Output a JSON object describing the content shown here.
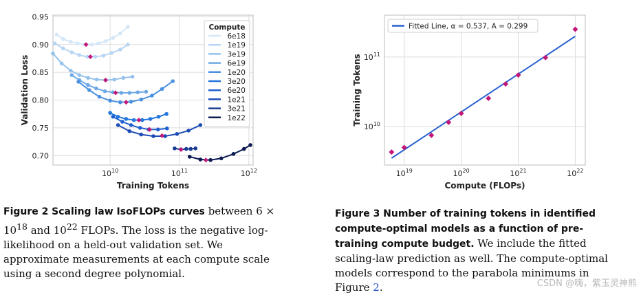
{
  "figure_left": {
    "caption_label": "Figure 2",
    "caption_title": "Scaling law IsoFLOPs curves",
    "caption_text_1": "between 6 × 10",
    "caption_sup_1": "18",
    "caption_text_2": "and 10",
    "caption_sup_2": "22",
    "caption_text_3": "FLOPs. The loss is the negative log-likelihood on a held-out validation set. We approximate measurements at each compute scale using a second degree polynomial."
  },
  "figure_right": {
    "caption_label": "Figure 3",
    "caption_title": "Number of training tokens in identified compute-optimal models as a function of pre-training compute budget.",
    "caption_text_1": "We include the fitted scaling-law prediction as well. The compute-optimal models correspond to the parabola minimums in Figure",
    "caption_ref": "2",
    "caption_end": "."
  },
  "watermark": "CSDN @嗨，紫玉灵神熊",
  "chart_data": [
    {
      "type": "line",
      "id": "isoflops",
      "xlabel": "Training Tokens",
      "ylabel": "Validation Loss",
      "xscale": "log",
      "xlim": [
        1500000000.0,
        1150000000000.0
      ],
      "ylim": [
        0.683,
        0.953
      ],
      "yticks": [
        0.7,
        0.75,
        0.8,
        0.85,
        0.9,
        0.95
      ],
      "ytick_labels": [
        "0.70",
        "0.75",
        "0.80",
        "0.85",
        "0.90",
        "0.95"
      ],
      "xticks": [
        {
          "value": 10000000000.0,
          "base": "10",
          "exp": "10"
        },
        {
          "value": 100000000000.0,
          "base": "10",
          "exp": "11"
        },
        {
          "value": 1000000000000.0,
          "base": "10",
          "exp": "12"
        }
      ],
      "legend": {
        "title": "Compute",
        "position": "top-right"
      },
      "minimum_marker_color": "#c2187a",
      "series": [
        {
          "name": "6e18",
          "color": "#d4e7f8",
          "x": [
            1700000000.0,
            2100000000.0,
            2700000000.0,
            3400000000.0,
            4300000000.0,
            5400000000.0,
            6800000000.0,
            8600000000.0,
            11000000000.0,
            14000000000.0,
            18000000000.0
          ],
          "y": [
            0.918,
            0.91,
            0.905,
            0.902,
            0.9,
            0.9,
            0.902,
            0.906,
            0.912,
            0.92,
            0.932
          ],
          "min": [
            4500000000.0,
            0.9
          ]
        },
        {
          "name": "1e19",
          "color": "#b7d6f3",
          "x": [
            1600000000.0,
            2100000000.0,
            2800000000.0,
            3600000000.0,
            4700000000.0,
            6100000000.0,
            8000000000.0,
            10500000000.0,
            14000000000.0,
            18000000000.0
          ],
          "y": [
            0.902,
            0.893,
            0.886,
            0.881,
            0.878,
            0.878,
            0.88,
            0.885,
            0.891,
            0.9
          ],
          "min": [
            5200000000.0,
            0.878
          ]
        },
        {
          "name": "3e19",
          "color": "#95c2ec",
          "x": [
            1500000000.0,
            2000000000.0,
            2700000000.0,
            3600000000.0,
            4800000000.0,
            6400000000.0,
            8600000000.0,
            11500000000.0,
            15500000000.0,
            21000000000.0
          ],
          "y": [
            0.884,
            0.866,
            0.853,
            0.845,
            0.84,
            0.837,
            0.836,
            0.837,
            0.84,
            0.842
          ],
          "min": [
            8600000000.0,
            0.836
          ]
        },
        {
          "name": "6e19",
          "color": "#6ea9e6",
          "x": [
            2800000000.0,
            3600000000.0,
            4800000000.0,
            6300000000.0,
            8400000000.0,
            11000000000.0,
            14500000000.0,
            19000000000.0,
            25000000000.0,
            33000000000.0
          ],
          "y": [
            0.845,
            0.836,
            0.827,
            0.821,
            0.816,
            0.814,
            0.813,
            0.813,
            0.814,
            0.815
          ],
          "min": [
            12000000000.0,
            0.813
          ]
        },
        {
          "name": "1e20",
          "color": "#4b91e0",
          "x": [
            3500000000.0,
            5000000000.0,
            7000000000.0,
            10000000000.0,
            14000000000.0,
            20000000000.0,
            28000000000.0,
            40000000000.0,
            56000000000.0,
            80000000000.0
          ],
          "y": [
            0.833,
            0.818,
            0.806,
            0.799,
            0.796,
            0.797,
            0.801,
            0.808,
            0.82,
            0.834
          ],
          "min": [
            17000000000.0,
            0.796
          ]
        },
        {
          "name": "3e20",
          "color": "#2376dd",
          "x": [
            10000000000.0,
            13000000000.0,
            17000000000.0,
            22000000000.0,
            29000000000.0,
            38000000000.0,
            50000000000.0,
            65000000000.0
          ],
          "y": [
            0.777,
            0.77,
            0.766,
            0.764,
            0.764,
            0.766,
            0.77,
            0.775
          ],
          "min": [
            26000000000.0,
            0.764
          ]
        },
        {
          "name": "6e20",
          "color": "#1f5fd0",
          "x": [
            11000000000.0,
            15000000000.0,
            20000000000.0,
            27000000000.0,
            36000000000.0,
            49000000000.0,
            66000000000.0
          ],
          "y": [
            0.77,
            0.761,
            0.755,
            0.75,
            0.747,
            0.747,
            0.749
          ],
          "min": [
            37000000000.0,
            0.747
          ]
        },
        {
          "name": "1e21",
          "color": "#1e4bb4",
          "x": [
            13000000000.0,
            19000000000.0,
            28000000000.0,
            42000000000.0,
            62000000000.0,
            92000000000.0,
            135000000000.0,
            200000000000.0
          ],
          "y": [
            0.755,
            0.744,
            0.738,
            0.735,
            0.735,
            0.739,
            0.745,
            0.755
          ],
          "min": [
            56000000000.0,
            0.736
          ]
        },
        {
          "name": "3e21",
          "color": "#183a92",
          "x": [
            85000000000.0,
            105000000000.0,
            125000000000.0,
            145000000000.0,
            170000000000.0
          ],
          "y": [
            0.713,
            0.711,
            0.712,
            0.712,
            0.713
          ],
          "min": [
            105000000000.0,
            0.711
          ]
        },
        {
          "name": "1e22",
          "color": "#0b1a52",
          "x": [
            140000000000.0,
            200000000000.0,
            280000000000.0,
            400000000000.0,
            600000000000.0,
            850000000000.0,
            1050000000000.0
          ],
          "y": [
            0.698,
            0.693,
            0.692,
            0.695,
            0.703,
            0.712,
            0.719
          ],
          "min": [
            240000000000.0,
            0.692
          ]
        }
      ]
    },
    {
      "type": "scatter",
      "id": "tokens-vs-compute",
      "xlabel": "Compute (FLOPs)",
      "ylabel": "Training Tokens",
      "xscale": "log",
      "yscale": "log",
      "xlim": [
        4.5e+18,
        1.5e+22
      ],
      "ylim": [
        2800000000.0,
        400000000000.0
      ],
      "xticks": [
        {
          "value": 1e+19,
          "base": "10",
          "exp": "19"
        },
        {
          "value": 1e+20,
          "base": "10",
          "exp": "20"
        },
        {
          "value": 1e+21,
          "base": "10",
          "exp": "21"
        },
        {
          "value": 1e+22,
          "base": "10",
          "exp": "22"
        }
      ],
      "yticks": [
        {
          "value": 10000000000.0,
          "base": "10",
          "exp": "10"
        },
        {
          "value": 100000000000.0,
          "base": "10",
          "exp": "11"
        }
      ],
      "legend": {
        "label": "Fitted Line, α = 0.537, A = 0.299",
        "position": "top-left"
      },
      "fit": {
        "alpha": 0.537,
        "A": 0.299,
        "color": "#2a62cf"
      },
      "point_color": "#c2187a",
      "points": {
        "x": [
          6e+18,
          1e+19,
          3e+19,
          6e+19,
          1e+20,
          3e+20,
          6e+20,
          1e+21,
          3e+21,
          1e+22
        ],
        "y": [
          4300000000.0,
          5000000000.0,
          7500000000.0,
          11500000000.0,
          15500000000.0,
          25500000000.0,
          41000000000.0,
          55000000000.0,
          98000000000.0,
          250000000000.0
        ]
      }
    }
  ]
}
